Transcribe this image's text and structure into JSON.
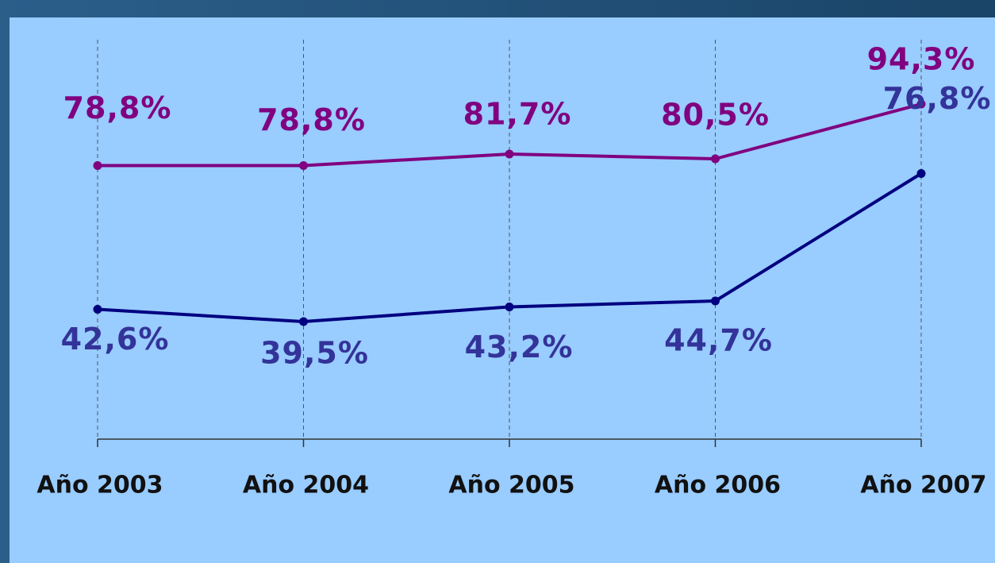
{
  "chart_data": {
    "type": "line",
    "categories": [
      "Año 2003",
      "Año 2004",
      "Año 2005",
      "Año 2006",
      "Año 2007"
    ],
    "series": [
      {
        "color": "#800080",
        "values": [
          78.8,
          78.8,
          81.7,
          80.5,
          94.3
        ],
        "value_labels": [
          "78,8%",
          "78,8%",
          "81,7%",
          "80,5%",
          "94,3%"
        ]
      },
      {
        "color": "#000080",
        "label_color": "#333399",
        "values": [
          42.6,
          39.5,
          43.2,
          44.7,
          76.8
        ],
        "value_labels": [
          "42,6%",
          "39,5%",
          "43,2%",
          "44,7%",
          "76,8%"
        ]
      }
    ],
    "grid": true
  }
}
